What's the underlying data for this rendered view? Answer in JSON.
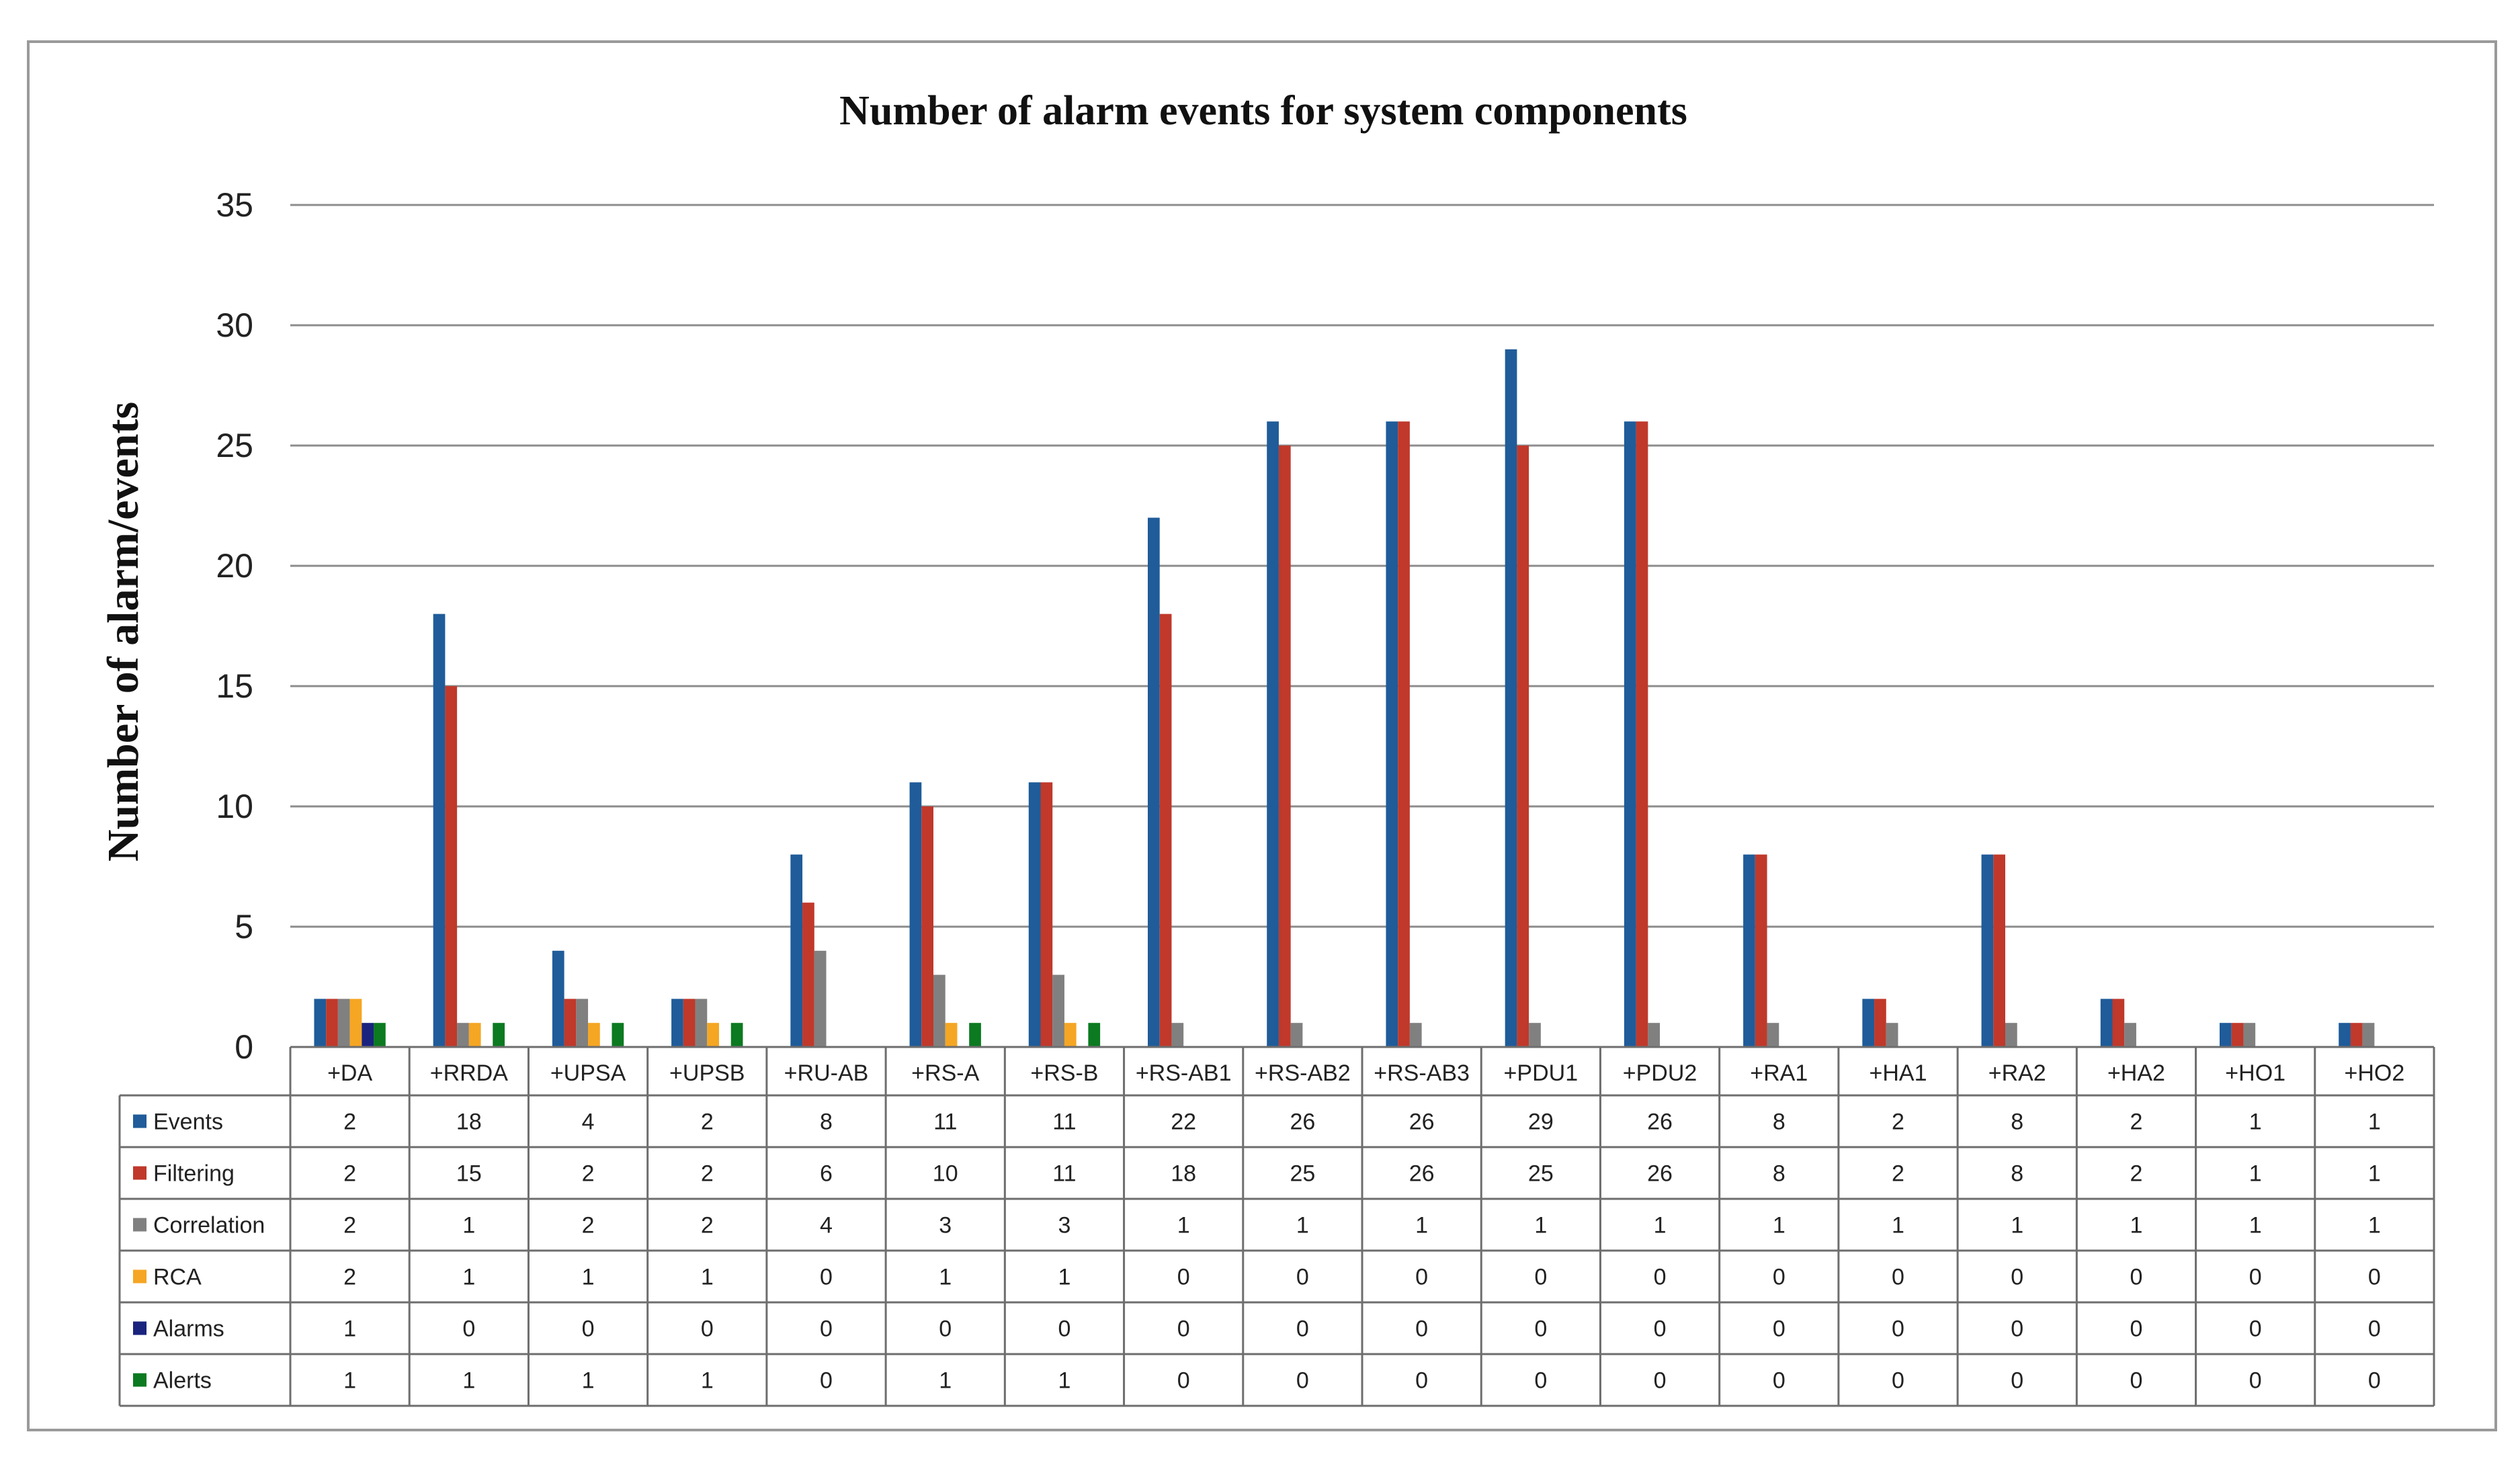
{
  "chart_data": {
    "type": "bar",
    "title": "Number of alarm events for system components",
    "xlabel": "",
    "ylabel": "Number of alarm/events",
    "ylim": [
      0,
      35
    ],
    "yticks": [
      0,
      5,
      10,
      15,
      20,
      25,
      30,
      35
    ],
    "grid": true,
    "legend": "data-table-left",
    "categories": [
      "+DA",
      "+RRDA",
      "+UPSA",
      "+UPSB",
      "+RU-AB",
      "+RS-A",
      "+RS-B",
      "+RS-AB1",
      "+RS-AB2",
      "+RS-AB3",
      "+PDU1",
      "+PDU2",
      "+RA1",
      "+HA1",
      "+RA2",
      "+HA2",
      "+HO1",
      "+HO2"
    ],
    "series": [
      {
        "name": "Events",
        "color": "#1f5c99",
        "values": [
          2,
          18,
          4,
          2,
          8,
          11,
          11,
          22,
          26,
          26,
          29,
          26,
          8,
          2,
          8,
          2,
          1,
          1
        ]
      },
      {
        "name": "Filtering",
        "color": "#c0392b",
        "values": [
          2,
          15,
          2,
          2,
          6,
          10,
          11,
          18,
          25,
          26,
          25,
          26,
          8,
          2,
          8,
          2,
          1,
          1
        ]
      },
      {
        "name": "Correlation",
        "color": "#808080",
        "values": [
          2,
          1,
          2,
          2,
          4,
          3,
          3,
          1,
          1,
          1,
          1,
          1,
          1,
          1,
          1,
          1,
          1,
          1
        ]
      },
      {
        "name": "RCA",
        "color": "#f5a623",
        "values": [
          2,
          1,
          1,
          1,
          0,
          1,
          1,
          0,
          0,
          0,
          0,
          0,
          0,
          0,
          0,
          0,
          0,
          0
        ]
      },
      {
        "name": "Alarms",
        "color": "#1a237e",
        "values": [
          1,
          0,
          0,
          0,
          0,
          0,
          0,
          0,
          0,
          0,
          0,
          0,
          0,
          0,
          0,
          0,
          0,
          0
        ]
      },
      {
        "name": "Alerts",
        "color": "#0b7a20",
        "values": [
          1,
          1,
          1,
          1,
          0,
          1,
          1,
          0,
          0,
          0,
          0,
          0,
          0,
          0,
          0,
          0,
          0,
          0
        ]
      }
    ]
  }
}
